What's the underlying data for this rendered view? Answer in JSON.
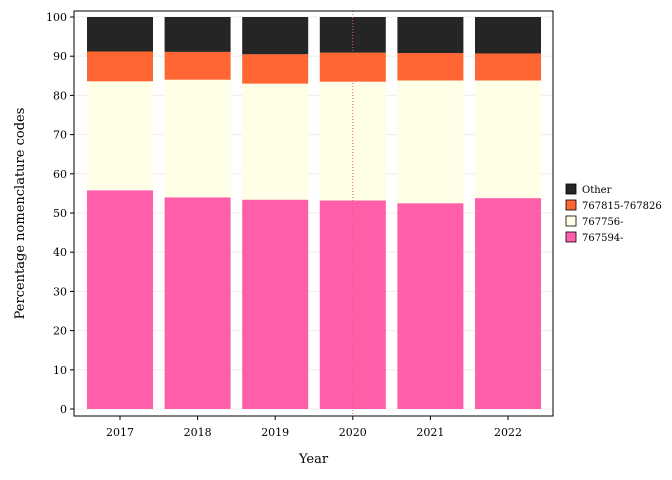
{
  "chart_data": {
    "type": "bar",
    "stacked": true,
    "xlabel": "Year",
    "ylabel": "Percentage nomenclature codes",
    "ylim": [
      0,
      100
    ],
    "yticks": [
      0,
      10,
      20,
      30,
      40,
      50,
      60,
      70,
      80,
      90,
      100
    ],
    "categories": [
      "2017",
      "2018",
      "2019",
      "2020",
      "2021",
      "2022"
    ],
    "series": [
      {
        "name": "767594-",
        "color": "#ff5fa8",
        "values": [
          55.8,
          54.0,
          53.4,
          53.2,
          52.5,
          53.8
        ]
      },
      {
        "name": "767756-",
        "color": "#fffee6",
        "values": [
          27.8,
          30.0,
          29.6,
          30.3,
          31.3,
          30.0
        ]
      },
      {
        "name": "767815-767826",
        "color": "#ff6633",
        "values": [
          7.6,
          7.1,
          7.5,
          7.4,
          7.0,
          6.9
        ]
      },
      {
        "name": "Other",
        "color": "#252525",
        "values": [
          8.8,
          8.9,
          9.5,
          9.1,
          9.2,
          9.3
        ]
      }
    ],
    "legend": {
      "placement": "right",
      "order": [
        "Other",
        "767815-767826",
        "767756-",
        "767594-"
      ]
    },
    "reference_line": {
      "x": "2020",
      "style": "dotted",
      "color": "#e06060"
    },
    "grid": true
  }
}
